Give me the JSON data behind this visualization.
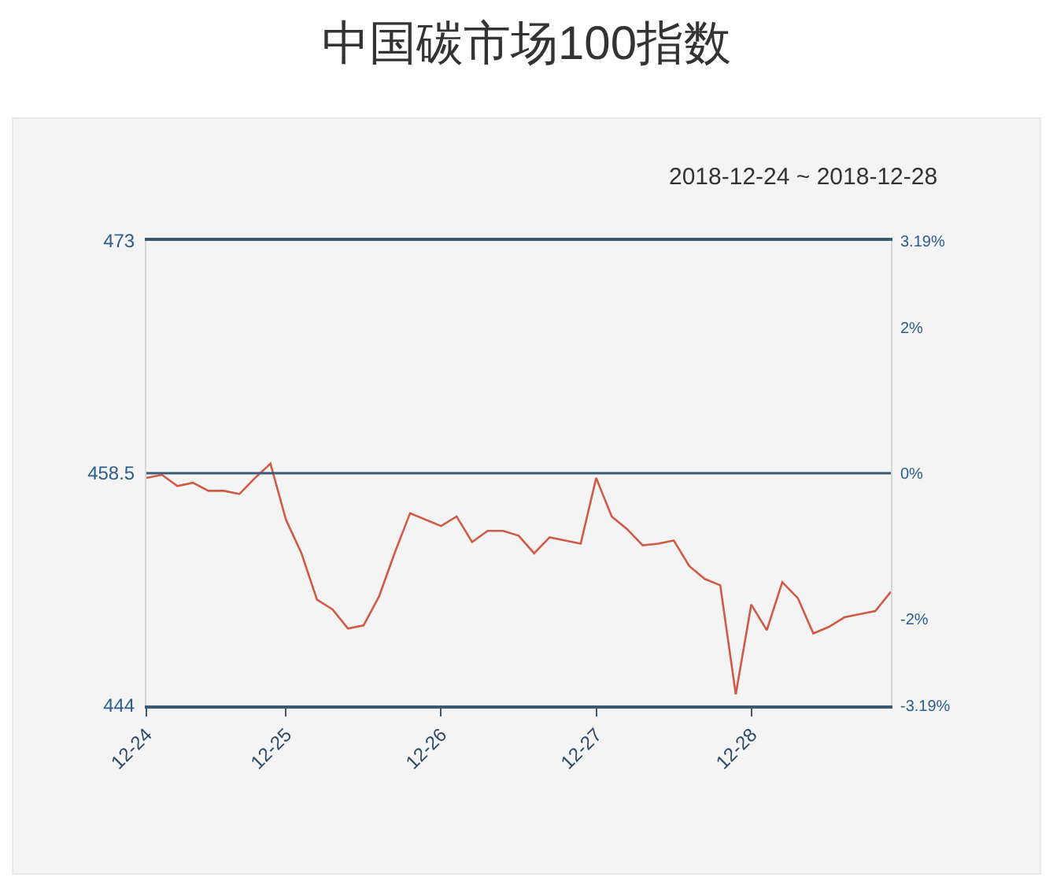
{
  "chart_data": {
    "type": "line",
    "title": "中国碳市场100指数",
    "subtitle": "2018-12-24 ~ 2018-12-28",
    "categories": [
      "12-24",
      null,
      null,
      null,
      null,
      null,
      null,
      null,
      null,
      "12-25",
      null,
      null,
      null,
      null,
      null,
      null,
      null,
      null,
      null,
      "12-26",
      null,
      null,
      null,
      null,
      null,
      null,
      null,
      null,
      null,
      "12-27",
      null,
      null,
      null,
      null,
      null,
      null,
      null,
      null,
      null,
      "12-28",
      null,
      null,
      null,
      null,
      null,
      null,
      null,
      null,
      null
    ],
    "series": [
      {
        "color": "#d05a46",
        "values": [
          458.2,
          458.4,
          457.7,
          457.9,
          457.4,
          457.4,
          457.2,
          458.2,
          459.1,
          455.6,
          453.5,
          450.6,
          450.0,
          448.8,
          449.0,
          450.8,
          453.5,
          456.0,
          455.6,
          455.2,
          455.8,
          454.2,
          454.9,
          454.9,
          454.6,
          453.5,
          454.5,
          454.3,
          454.1,
          458.2,
          455.8,
          455.0,
          454.0,
          454.1,
          454.3,
          452.7,
          451.9,
          451.5,
          444.7,
          450.3,
          448.7,
          451.7,
          450.7,
          448.5,
          448.9,
          449.5,
          449.7,
          449.9,
          451.1
        ]
      }
    ],
    "ylim": [
      444,
      473
    ],
    "yticks": [
      444,
      458.5,
      473
    ],
    "y2lim": [
      -3.19,
      3.19
    ],
    "y2ticks": [
      {
        "value": -3.19,
        "label": "-3.19%"
      },
      {
        "value": -2,
        "label": "-2%"
      },
      {
        "value": 0,
        "label": "0%"
      },
      {
        "value": 2,
        "label": "2%"
      },
      {
        "value": 3.19,
        "label": "3.19%"
      }
    ],
    "ref_lines": [
      {
        "axis": "y",
        "value": 458.5,
        "color": "#3a5a74"
      }
    ],
    "line_style": "solid"
  }
}
